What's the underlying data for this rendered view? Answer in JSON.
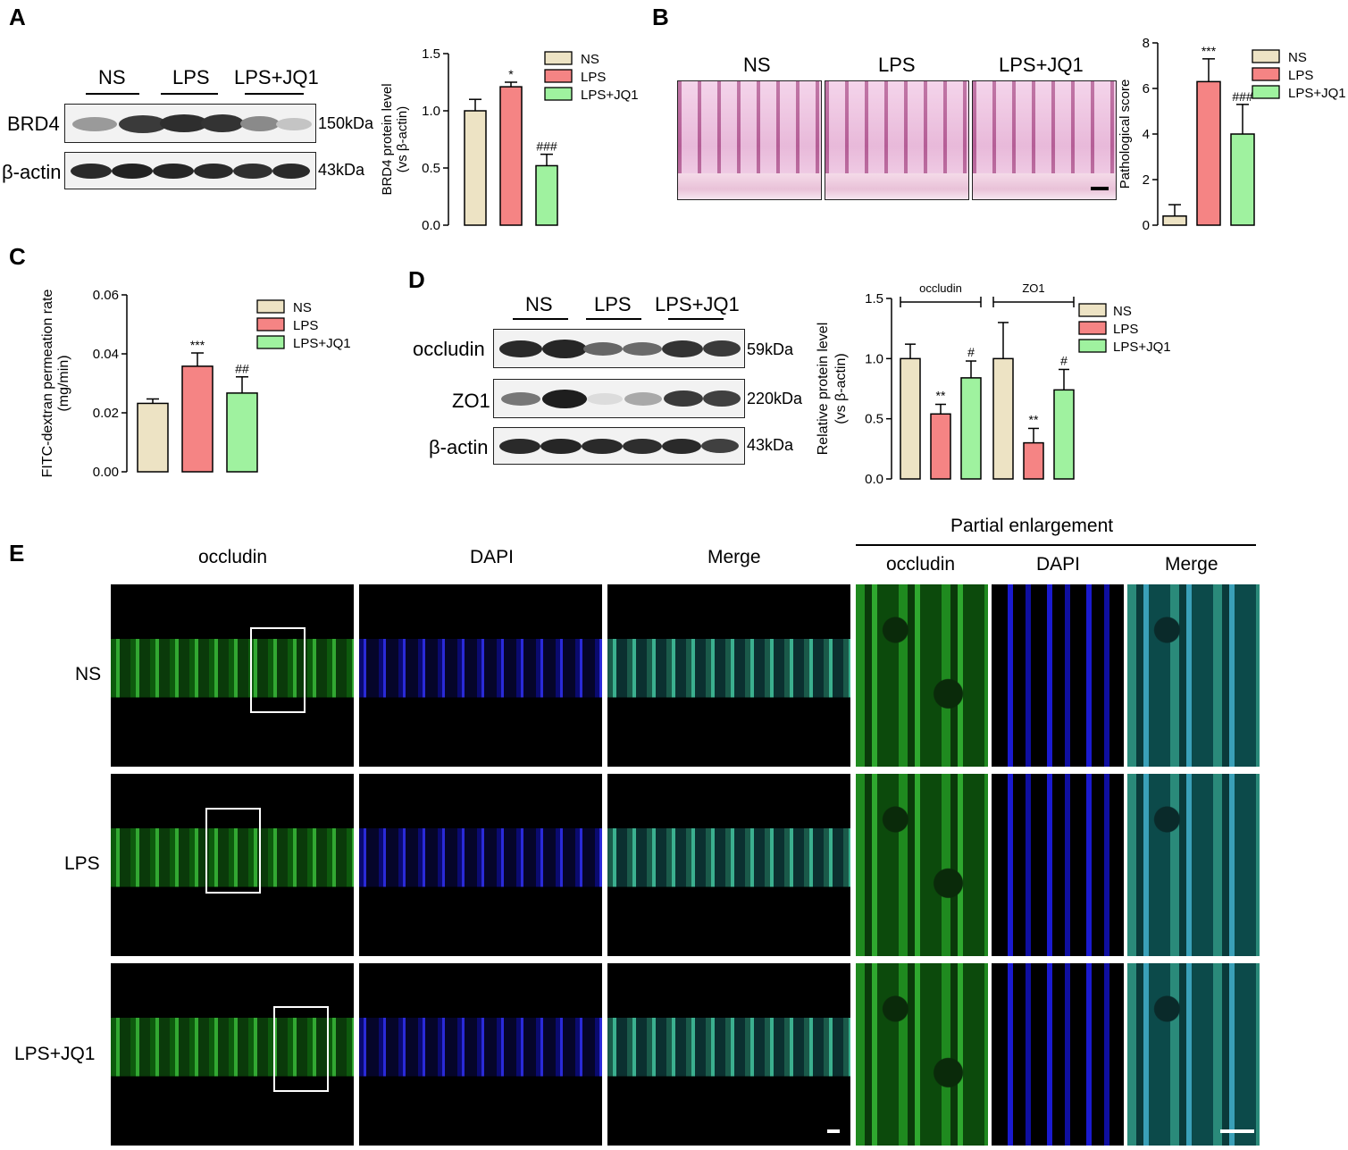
{
  "panel_letters": {
    "a": "A",
    "b": "B",
    "c": "C",
    "d": "D",
    "e": "E"
  },
  "groups": [
    "NS",
    "LPS",
    "LPS+JQ1"
  ],
  "group_colors": {
    "NS": "#ede3c4",
    "LPS": "#f58484",
    "LPS+JQ1": "#9ff29f"
  },
  "panel_a": {
    "blot_groups": [
      "NS",
      "LPS",
      "LPS+JQ1"
    ],
    "rows": [
      {
        "label": "BRD4",
        "size": "150kDa"
      },
      {
        "label": "β-actin",
        "size": "43kDa"
      }
    ]
  },
  "panel_b": {
    "image_labels": [
      "NS",
      "LPS",
      "LPS+JQ1"
    ]
  },
  "panel_d": {
    "blot_groups": [
      "NS",
      "LPS",
      "LPS+JQ1"
    ],
    "rows": [
      {
        "label": "occludin",
        "size": "59kDa"
      },
      {
        "label": "ZO1",
        "size": "220kDa"
      },
      {
        "label": "β-actin",
        "size": "43kDa"
      }
    ]
  },
  "panel_e": {
    "col_headers": [
      "occludin",
      "DAPI",
      "Merge"
    ],
    "enlargement_title": "Partial enlargement",
    "enlargement_headers": [
      "occludin",
      "DAPI",
      "Merge"
    ],
    "row_labels": [
      "NS",
      "LPS",
      "LPS+JQ1"
    ]
  },
  "chart_data": [
    {
      "type": "bar",
      "panel": "A",
      "categories": [
        "NS",
        "LPS",
        "LPS+JQ1"
      ],
      "values": [
        1.0,
        1.21,
        0.52
      ],
      "errors": [
        0.1,
        0.04,
        0.1
      ],
      "significance": [
        "",
        "*",
        "###"
      ],
      "ylabel_line1": "BRD4 protein level",
      "ylabel_line2": "(vs β-actin)",
      "ylim": [
        0,
        1.5
      ],
      "yticks": [
        "0.0",
        "0.5",
        "1.0",
        "1.5"
      ],
      "legend": [
        "NS",
        "LPS",
        "LPS+JQ1"
      ]
    },
    {
      "type": "bar",
      "panel": "B",
      "categories": [
        "NS",
        "LPS",
        "LPS+JQ1"
      ],
      "values": [
        0.4,
        6.3,
        4.0
      ],
      "errors": [
        0.5,
        1.0,
        1.3
      ],
      "significance": [
        "",
        "***",
        "###"
      ],
      "ylabel_line1": "Pathological score",
      "ylabel_line2": "",
      "ylim": [
        0,
        8
      ],
      "yticks": [
        "0",
        "2",
        "4",
        "6",
        "8"
      ],
      "legend": [
        "NS",
        "LPS",
        "LPS+JQ1"
      ]
    },
    {
      "type": "bar",
      "panel": "C",
      "categories": [
        "NS",
        "LPS",
        "LPS+JQ1"
      ],
      "values": [
        0.0232,
        0.0358,
        0.0267
      ],
      "errors": [
        0.0015,
        0.0045,
        0.0055
      ],
      "significance": [
        "",
        "***",
        "##"
      ],
      "ylabel_line1": "FITC-dextran permeation rate",
      "ylabel_line2": "(mg/min)",
      "ylim": [
        0,
        0.06
      ],
      "yticks": [
        "0.00",
        "0.02",
        "0.04",
        "0.06"
      ],
      "legend": [
        "NS",
        "LPS",
        "LPS+JQ1"
      ]
    },
    {
      "type": "bar",
      "panel": "D",
      "groups": [
        "occludin",
        "ZO1"
      ],
      "categories": [
        "NS",
        "LPS",
        "LPS+JQ1"
      ],
      "series": [
        {
          "name": "occludin",
          "values": [
            1.0,
            0.54,
            0.84
          ],
          "errors": [
            0.12,
            0.08,
            0.14
          ],
          "significance": [
            "",
            "**",
            "#"
          ]
        },
        {
          "name": "ZO1",
          "values": [
            1.0,
            0.3,
            0.74
          ],
          "errors": [
            0.3,
            0.12,
            0.17
          ],
          "significance": [
            "",
            "**",
            "#"
          ]
        }
      ],
      "ylabel_line1": "Relative protein level",
      "ylabel_line2": "(vs β-actin)",
      "ylim": [
        0,
        1.5
      ],
      "yticks": [
        "0.0",
        "0.5",
        "1.0",
        "1.5"
      ],
      "legend": [
        "NS",
        "LPS",
        "LPS+JQ1"
      ]
    }
  ]
}
